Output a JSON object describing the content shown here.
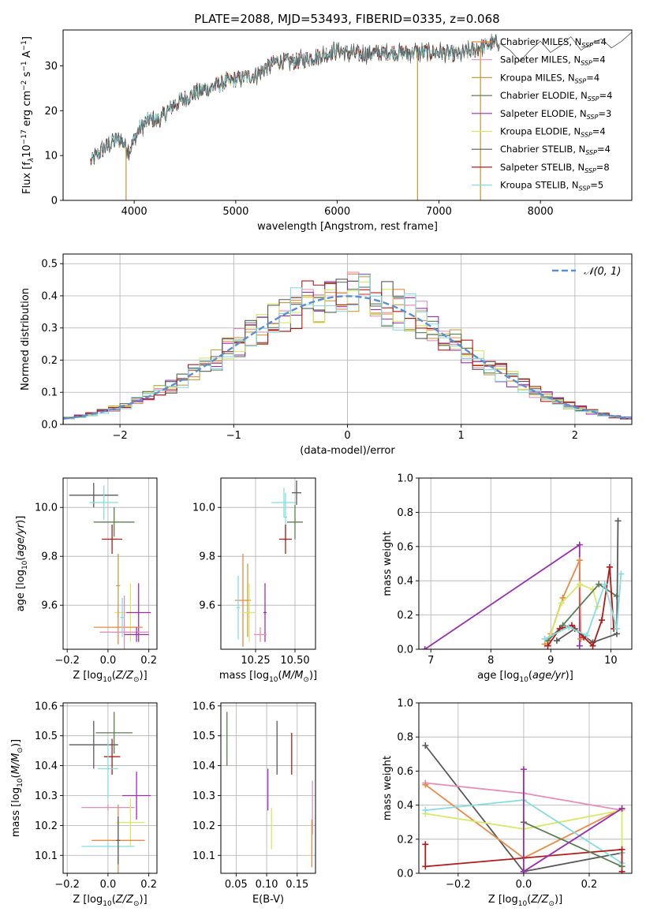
{
  "figure_title": "PLATE=2088, MJD=53493, FIBERID=0335, z=0.068",
  "colors": {
    "Chabrier MILES": "#e88a45",
    "Salpeter MILES": "#e58fb8",
    "Kroupa MILES": "#c5a043",
    "Chabrier ELODIE": "#5d7d55",
    "Salpeter ELODIE": "#9a2fb0",
    "Kroupa ELODIE": "#d8e868",
    "Chabrier STELIB": "#5a5a5a",
    "Salpeter STELIB": "#b31b1b",
    "Kroupa STELIB": "#86dce0",
    "data": "#555555",
    "gaussian": "#5b8fd4",
    "grid": "#b0b0b0"
  },
  "chart_data": [
    {
      "id": "spectrum",
      "type": "line",
      "title": "PLATE=2088, MJD=53493, FIBERID=0335, z=0.068",
      "xlabel": "wavelength [Angstrom, rest frame]",
      "ylabel_parts": [
        "Flux [f",
        "λ",
        "10",
        "−17",
        " erg cm",
        "−2",
        " s",
        "−1",
        " A",
        "−1",
        "]"
      ],
      "xlim": [
        3300,
        8900
      ],
      "ylim": [
        0,
        38
      ],
      "x_ticks": [
        4000,
        5000,
        6000,
        7000,
        8000
      ],
      "x_tick_labels": [
        "4000",
        "5000",
        "6000",
        "7000",
        "8000"
      ],
      "y_ticks": [
        0,
        10,
        20,
        30
      ],
      "y_tick_labels": [
        "0",
        "10",
        "20",
        "30"
      ],
      "grid": false,
      "legend_position": "right",
      "legend": [
        {
          "base": "Chabrier MILES, N",
          "sub": "SSP",
          "tail": "=4"
        },
        {
          "base": "Salpeter MILES, N",
          "sub": "SSP",
          "tail": "=4"
        },
        {
          "base": "Kroupa MILES, N",
          "sub": "SSP",
          "tail": "=4"
        },
        {
          "base": "Chabrier ELODIE, N",
          "sub": "SSP",
          "tail": "=4"
        },
        {
          "base": "Salpeter ELODIE, N",
          "sub": "SSP",
          "tail": "=3"
        },
        {
          "base": "Kroupa ELODIE, N",
          "sub": "SSP",
          "tail": "=4"
        },
        {
          "base": "Chabrier STELIB, N",
          "sub": "SSP",
          "tail": "=4"
        },
        {
          "base": "Salpeter STELIB, N",
          "sub": "SSP",
          "tail": "=8"
        },
        {
          "base": "Kroupa STELIB, N",
          "sub": "SSP",
          "tail": "=5"
        }
      ],
      "legend_models": [
        "Chabrier MILES",
        "Salpeter MILES",
        "Kroupa MILES",
        "Chabrier ELODIE",
        "Salpeter ELODIE",
        "Kroupa ELODIE",
        "Chabrier STELIB",
        "Salpeter STELIB",
        "Kroupa STELIB"
      ],
      "continuum_x": [
        3570,
        3650,
        3750,
        3850,
        3950,
        4050,
        4150,
        4250,
        4400,
        4600,
        4800,
        5000,
        5200,
        5400,
        5600,
        5800,
        6000,
        6200,
        6400,
        6600,
        6800,
        7000,
        7200,
        7400,
        7600
      ],
      "continuum_y": [
        8.5,
        10.5,
        12.5,
        14.0,
        11.0,
        16.0,
        18.0,
        18.0,
        21.5,
        24.0,
        25.5,
        27.0,
        28.0,
        31.0,
        31.0,
        32.0,
        33.5,
        32.5,
        33.0,
        33.0,
        33.0,
        33.0,
        32.5,
        34.0,
        35.5
      ],
      "model_tail_x": [
        7600,
        7700,
        7800,
        7900,
        8000,
        8100,
        8200,
        8300,
        8400,
        8500,
        8600,
        8700,
        8800,
        8900
      ],
      "model_tail_y": [
        35.0,
        33.5,
        31.0,
        33.5,
        35.5,
        33.0,
        34.5,
        36.5,
        33.5,
        35.0,
        36.0,
        34.0,
        35.5,
        37.5
      ],
      "data_spikes_x": [
        3920,
        6790,
        7410
      ]
    },
    {
      "id": "residual-histogram",
      "type": "histogram",
      "xlabel": "(data-model)/error",
      "ylabel": "Normed distribution",
      "xlim": [
        -2.5,
        2.5
      ],
      "ylim": [
        0,
        0.53
      ],
      "x_ticks": [
        -2,
        -1,
        0,
        1,
        2
      ],
      "x_tick_labels": [
        "−2",
        "−1",
        "0",
        "1",
        "2"
      ],
      "y_ticks": [
        0,
        0.1,
        0.2,
        0.3,
        0.4,
        0.5
      ],
      "y_tick_labels": [
        "0.0",
        "0.1",
        "0.2",
        "0.3",
        "0.4",
        "0.5"
      ],
      "grid": true,
      "legend_position": "top-right",
      "reference_curve": {
        "label": "𝒩(0, 1)",
        "mean": 0,
        "sigma": 1
      },
      "bin_width": 0.1,
      "bin_start": -2.5
    },
    {
      "id": "age-vs-Z",
      "type": "scatter",
      "xlabel": "Z [log10(Z/Z⊙)]",
      "ylabel": "age  [log10(age/yr)]",
      "xlim": [
        -0.22,
        0.24
      ],
      "ylim": [
        9.42,
        10.12
      ],
      "x_ticks": [
        -0.2,
        0.0,
        0.2
      ],
      "x_tick_labels": [
        "−0.2",
        "0.0",
        "0.2"
      ],
      "y_ticks": [
        9.6,
        9.8,
        10.0
      ],
      "y_tick_labels": [
        "9.6",
        "9.8",
        "10.0"
      ],
      "grid": true,
      "crosses": [
        {
          "model": "Chabrier STELIB",
          "x": -0.07,
          "xerr": 0.12,
          "y": 10.05,
          "yerr": 0.05
        },
        {
          "model": "Kroupa STELIB",
          "x": -0.02,
          "xerr": 0.07,
          "y": 10.02,
          "yerr": 0.07
        },
        {
          "model": "Chabrier ELODIE",
          "x": 0.03,
          "xerr": 0.1,
          "y": 9.94,
          "yerr": 0.06
        },
        {
          "model": "Salpeter STELIB",
          "x": 0.02,
          "xerr": 0.05,
          "y": 9.87,
          "yerr": 0.06
        },
        {
          "model": "Kroupa MILES",
          "x": 0.05,
          "xerr": 0.01,
          "y": 9.68,
          "yerr": 0.13
        },
        {
          "model": "Kroupa ELODIE",
          "x": 0.11,
          "xerr": 0.08,
          "y": 9.57,
          "yerr": 0.12
        },
        {
          "model": "Salpeter ELODIE",
          "x": 0.15,
          "xerr": 0.06,
          "y": 9.57,
          "yerr": 0.12
        },
        {
          "model": "Chabrier MILES",
          "x": 0.05,
          "xerr": 0.12,
          "y": 9.51,
          "yerr": 0.07
        },
        {
          "model": "Salpeter MILES",
          "x": 0.08,
          "xerr": 0.12,
          "y": 9.49,
          "yerr": 0.15
        },
        {
          "model": "Salpeter ELODIE",
          "x": 0.14,
          "xerr": 0.06,
          "y": 9.48,
          "yerr": 0.03
        },
        {
          "model": "Kroupa STELIB",
          "x": 0.07,
          "xerr": 0.01,
          "y": 9.55,
          "yerr": 0.08
        }
      ]
    },
    {
      "id": "age-vs-mass",
      "type": "scatter",
      "xlabel": "mass [log10(M/M⊙)]",
      "ylabel": "",
      "xlim": [
        10.03,
        10.63
      ],
      "ylim": [
        9.42,
        10.12
      ],
      "x_ticks": [
        10.25,
        10.5
      ],
      "x_tick_labels": [
        "10.25",
        "10.50"
      ],
      "y_ticks": [
        9.6,
        9.8,
        10.0
      ],
      "y_tick_labels": [
        "9.6",
        "9.8",
        "10.0"
      ],
      "grid": true,
      "crosses": [
        {
          "model": "Kroupa STELIB",
          "x": 10.43,
          "xerr": 0.08,
          "y": 10.02,
          "yerr": 0.06
        },
        {
          "model": "Chabrier STELIB",
          "x": 10.51,
          "xerr": 0.03,
          "y": 10.06,
          "yerr": 0.05
        },
        {
          "model": "Chabrier ELODIE",
          "x": 10.5,
          "xerr": 0.05,
          "y": 9.94,
          "yerr": 0.07
        },
        {
          "model": "Kroupa STELIB",
          "x": 10.44,
          "xerr": 0.01,
          "y": 9.96,
          "yerr": 0.1
        },
        {
          "model": "Salpeter STELIB",
          "x": 10.44,
          "xerr": 0.04,
          "y": 9.87,
          "yerr": 0.06
        },
        {
          "model": "Chabrier MILES",
          "x": 10.17,
          "xerr": 0.05,
          "y": 9.62,
          "yerr": 0.19
        },
        {
          "model": "Kroupa MILES",
          "x": 10.2,
          "xerr": 0.01,
          "y": 9.62,
          "yerr": 0.15
        },
        {
          "model": "Kroupa ELODIE",
          "x": 10.21,
          "xerr": 0.04,
          "y": 9.57,
          "yerr": 0.12
        },
        {
          "model": "Salpeter ELODIE",
          "x": 10.31,
          "xerr": 0.01,
          "y": 9.57,
          "yerr": 0.12
        },
        {
          "model": "Salpeter MILES",
          "x": 10.28,
          "xerr": 0.04,
          "y": 9.48,
          "yerr": 0.03
        },
        {
          "model": "Kroupa STELIB",
          "x": 10.14,
          "xerr": 0.01,
          "y": 9.59,
          "yerr": 0.13
        }
      ]
    },
    {
      "id": "mass-weight-vs-age",
      "type": "line",
      "xlabel": "age  [log10(age/yr)]",
      "ylabel": "mass weight",
      "xlim": [
        6.8,
        10.35
      ],
      "ylim": [
        0,
        1.0
      ],
      "x_ticks": [
        7,
        8,
        9,
        10
      ],
      "x_tick_labels": [
        "7",
        "8",
        "9",
        "10"
      ],
      "y_ticks": [
        0,
        0.2,
        0.4,
        0.6,
        0.8,
        1.0
      ],
      "y_tick_labels": [
        "0.0",
        "0.2",
        "0.4",
        "0.6",
        "0.8",
        "1.0"
      ],
      "grid": true,
      "series": [
        {
          "model": "Salpeter ELODIE",
          "x": [
            6.9,
            9.48,
            9.48
          ],
          "y": [
            0.0,
            0.61,
            0.02
          ]
        },
        {
          "model": "Chabrier MILES",
          "x": [
            8.9,
            9.0,
            9.2,
            9.48,
            9.5
          ],
          "y": [
            0.03,
            0.09,
            0.3,
            0.52,
            0.06
          ]
        },
        {
          "model": "Kroupa ELODIE",
          "x": [
            8.95,
            9.18,
            9.48,
            9.7,
            9.78
          ],
          "y": [
            0.04,
            0.27,
            0.38,
            0.35,
            0.25
          ]
        },
        {
          "model": "Chabrier ELODIE",
          "x": [
            8.95,
            9.2,
            9.8,
            10.1
          ],
          "y": [
            0.05,
            0.14,
            0.38,
            0.31
          ]
        },
        {
          "model": "Chabrier STELIB",
          "x": [
            9.1,
            9.4,
            9.7,
            10.1,
            10.12
          ],
          "y": [
            0.05,
            0.12,
            0.04,
            0.09,
            0.75
          ]
        },
        {
          "model": "Salpeter STELIB",
          "x": [
            8.95,
            9.15,
            9.35,
            9.55,
            9.7,
            9.85,
            9.98,
            10.05
          ],
          "y": [
            0.02,
            0.12,
            0.14,
            0.07,
            0.02,
            0.17,
            0.48,
            0.12
          ]
        },
        {
          "model": "Kroupa STELIB",
          "x": [
            8.9,
            9.3,
            9.6,
            9.9,
            10.1,
            10.17
          ],
          "y": [
            0.06,
            0.13,
            0.08,
            0.38,
            0.12,
            0.44
          ]
        }
      ]
    },
    {
      "id": "mass-vs-Z",
      "type": "scatter",
      "xlabel": "Z [log10(Z/Z⊙)]",
      "ylabel": "mass [log10(M/M⊙)]",
      "xlim": [
        -0.22,
        0.24
      ],
      "ylim": [
        10.04,
        10.61
      ],
      "x_ticks": [
        -0.2,
        0.0,
        0.2
      ],
      "x_tick_labels": [
        "−0.2",
        "0.0",
        "0.2"
      ],
      "y_ticks": [
        10.1,
        10.2,
        10.3,
        10.4,
        10.5,
        10.6
      ],
      "y_tick_labels": [
        "10.1",
        "10.2",
        "10.3",
        "10.4",
        "10.5",
        "10.6"
      ],
      "grid": true,
      "crosses": [
        {
          "model": "Chabrier STELIB",
          "x": -0.07,
          "xerr": 0.12,
          "y": 10.47,
          "yerr": 0.08
        },
        {
          "model": "Chabrier ELODIE",
          "x": 0.03,
          "xerr": 0.09,
          "y": 10.51,
          "yerr": 0.07
        },
        {
          "model": "Salpeter STELIB",
          "x": 0.02,
          "xerr": 0.04,
          "y": 10.43,
          "yerr": 0.06
        },
        {
          "model": "Kroupa STELIB",
          "x": 0.0,
          "xerr": 0.05,
          "y": 10.39,
          "yerr": 0.1
        },
        {
          "model": "Salpeter ELODIE",
          "x": 0.14,
          "xerr": 0.07,
          "y": 10.3,
          "yerr": 0.08
        },
        {
          "model": "Salpeter MILES",
          "x": 0.0,
          "xerr": 0.13,
          "y": 10.26,
          "yerr": 0.01
        },
        {
          "model": "Kroupa ELODIE",
          "x": 0.11,
          "xerr": 0.07,
          "y": 10.21,
          "yerr": 0.08
        },
        {
          "model": "Chabrier MILES",
          "x": 0.05,
          "xerr": 0.13,
          "y": 10.15,
          "yerr": 0.12
        },
        {
          "model": "Kroupa STELIB",
          "x": 0.0,
          "xerr": 0.13,
          "y": 10.13,
          "yerr": 0.01
        },
        {
          "model": "Chabrier STELIB",
          "x": 0.05,
          "xerr": 0.01,
          "y": 10.15,
          "yerr": 0.08
        }
      ]
    },
    {
      "id": "mass-vs-EBV",
      "type": "scatter",
      "xlabel": "E(B-V)",
      "ylabel": "",
      "xlim": [
        0.025,
        0.18
      ],
      "ylim": [
        10.04,
        10.61
      ],
      "x_ticks": [
        0.05,
        0.1,
        0.15
      ],
      "x_tick_labels": [
        "0.05",
        "0.10",
        "0.15"
      ],
      "y_ticks": [
        10.1,
        10.2,
        10.3,
        10.4,
        10.5,
        10.6
      ],
      "y_tick_labels": [
        "10.1",
        "10.2",
        "10.3",
        "10.4",
        "10.5",
        "10.6"
      ],
      "grid": true,
      "crosses": [
        {
          "model": "Chabrier ELODIE",
          "x": 0.035,
          "xerr": 0.0,
          "y": 10.49,
          "yerr": 0.09
        },
        {
          "model": "Chabrier STELIB",
          "x": 0.117,
          "xerr": 0.0,
          "y": 10.46,
          "yerr": 0.09
        },
        {
          "model": "Salpeter STELIB",
          "x": 0.141,
          "xerr": 0.0,
          "y": 10.44,
          "yerr": 0.07
        },
        {
          "model": "Salpeter ELODIE",
          "x": 0.102,
          "xerr": 0.0,
          "y": 10.32,
          "yerr": 0.07
        },
        {
          "model": "Kroupa ELODIE",
          "x": 0.108,
          "xerr": 0.0,
          "y": 10.19,
          "yerr": 0.07
        },
        {
          "model": "Salpeter MILES",
          "x": 0.175,
          "xerr": 0.0,
          "y": 10.26,
          "yerr": 0.09
        },
        {
          "model": "Chabrier MILES",
          "x": 0.174,
          "xerr": 0.0,
          "y": 10.14,
          "yerr": 0.08
        }
      ]
    },
    {
      "id": "mass-weight-vs-Z",
      "type": "line",
      "xlabel": "Z [log10(Z/Z⊙)]",
      "ylabel": "mass weight",
      "xlim": [
        -0.32,
        0.33
      ],
      "ylim": [
        0,
        1.0
      ],
      "x_ticks": [
        -0.2,
        0.0,
        0.2
      ],
      "x_tick_labels": [
        "−0.2",
        "0.0",
        "0.2"
      ],
      "y_ticks": [
        0,
        0.2,
        0.4,
        0.6,
        0.8,
        1.0
      ],
      "y_tick_labels": [
        "0.0",
        "0.2",
        "0.4",
        "0.6",
        "0.8",
        "1.0"
      ],
      "grid": true,
      "series": [
        {
          "model": "Chabrier STELIB",
          "x": [
            -0.3,
            0.0,
            0.3
          ],
          "y": [
            0.75,
            0.01,
            0.12
          ]
        },
        {
          "model": "Salpeter MILES",
          "x": [
            -0.3,
            0.0,
            0.3
          ],
          "y": [
            0.53,
            0.47,
            0.37
          ]
        },
        {
          "model": "Chabrier MILES",
          "x": [
            -0.3,
            0.0,
            0.3
          ],
          "y": [
            0.52,
            0.09,
            0.38
          ]
        },
        {
          "model": "Kroupa ELODIE",
          "x": [
            -0.3,
            0.0,
            0.3,
            0.3
          ],
          "y": [
            0.35,
            0.26,
            0.37,
            0.04
          ]
        },
        {
          "model": "Kroupa STELIB",
          "x": [
            -0.3,
            0.0,
            0.3,
            0.3
          ],
          "y": [
            0.37,
            0.43,
            0.06,
            0.12
          ]
        },
        {
          "model": "Salpeter STELIB",
          "x": [
            -0.3,
            -0.3,
            0.3,
            0.3
          ],
          "y": [
            0.17,
            0.04,
            0.14,
            0.01
          ]
        },
        {
          "model": "Chabrier ELODIE",
          "x": [
            0.0,
            0.3
          ],
          "y": [
            0.3,
            0.04
          ]
        },
        {
          "model": "Salpeter ELODIE",
          "x": [
            0.0,
            0.0,
            0.3
          ],
          "y": [
            0.61,
            0.01,
            0.38
          ]
        }
      ]
    }
  ]
}
